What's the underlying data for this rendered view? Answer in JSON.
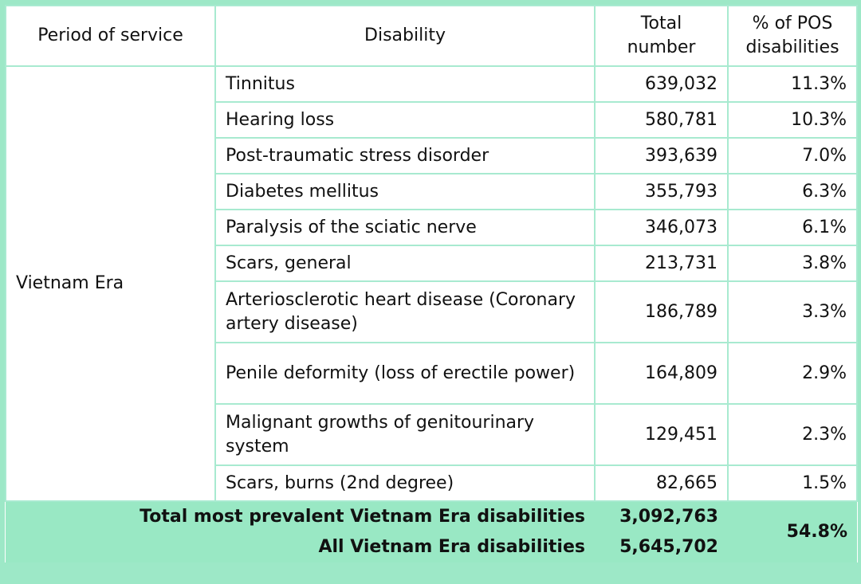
{
  "headers": {
    "period": "Period of service",
    "disability": "Disability",
    "total": "Total number",
    "percent": "% of POS disabilities"
  },
  "period": "Vietnam Era",
  "rows": [
    {
      "disability": "Tinnitus",
      "total": "639,032",
      "percent": "11.3%"
    },
    {
      "disability": "Hearing loss",
      "total": "580,781",
      "percent": "10.3%"
    },
    {
      "disability": "Post-traumatic stress disorder",
      "total": "393,639",
      "percent": "7.0%"
    },
    {
      "disability": "Diabetes mellitus",
      "total": "355,793",
      "percent": "6.3%"
    },
    {
      "disability": "Paralysis of the sciatic nerve",
      "total": "346,073",
      "percent": "6.1%"
    },
    {
      "disability": "Scars, general",
      "total": "213,731",
      "percent": "3.8%"
    },
    {
      "disability": "Arteriosclerotic heart disease (Coronary artery disease)",
      "total": "186,789",
      "percent": "3.3%"
    },
    {
      "disability": "Penile deformity (loss of erectile power)",
      "total": "164,809",
      "percent": "2.9%"
    },
    {
      "disability": "Malignant growths of genitourinary system",
      "total": "129,451",
      "percent": "2.3%"
    },
    {
      "disability": "Scars, burns (2nd degree)",
      "total": "82,665",
      "percent": "1.5%"
    }
  ],
  "footer": {
    "total_label": "Total most prevalent Vietnam Era disabilities",
    "total_value": "3,092,763",
    "all_label": "All Vietnam Era disabilities",
    "all_value": "5,645,702",
    "percent": "54.8%"
  },
  "colors": {
    "border": "#9de8c7",
    "footer_bg": "#99e8c4"
  }
}
